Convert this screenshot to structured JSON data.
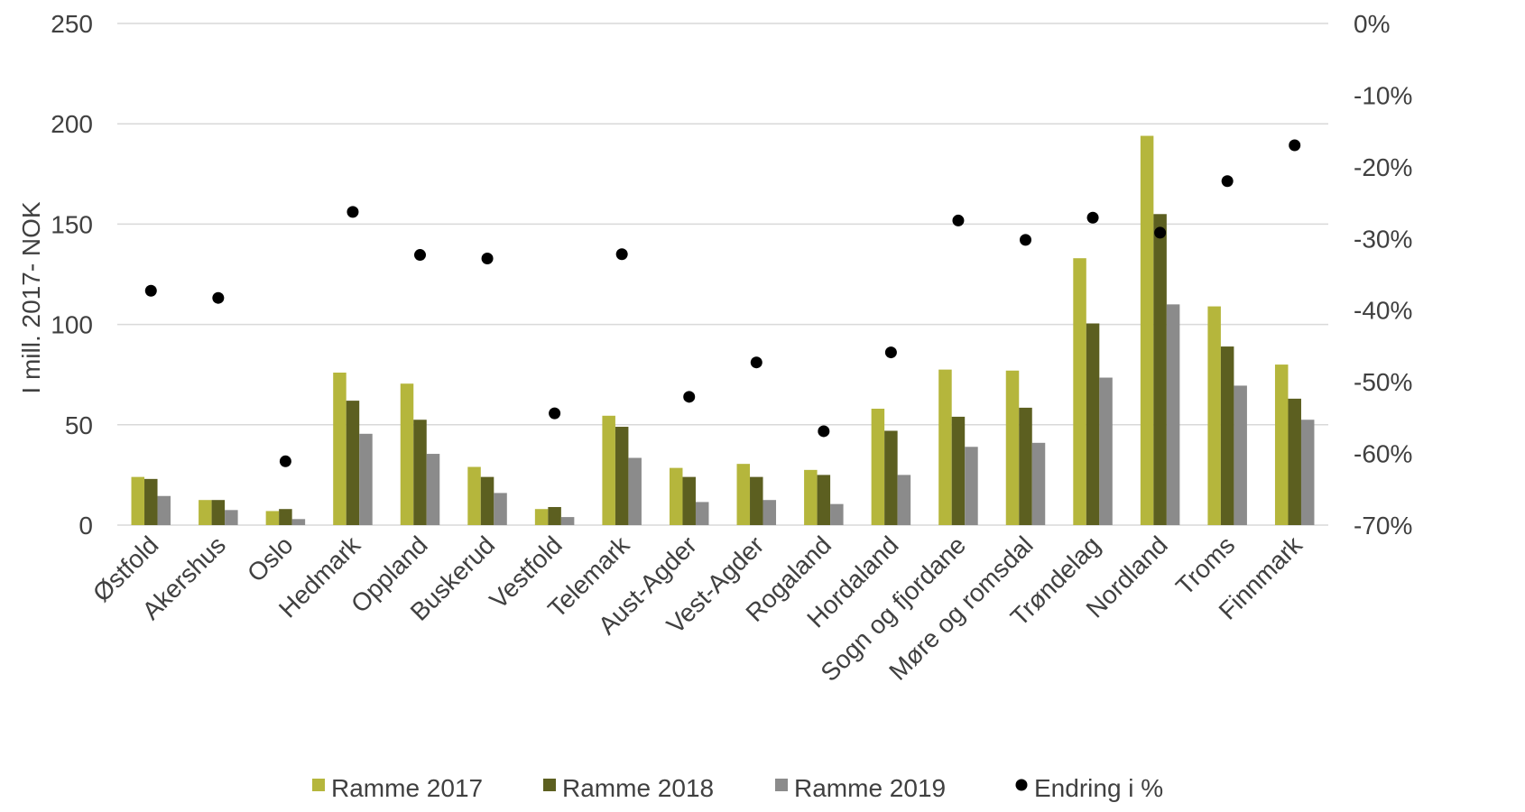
{
  "chart_data": {
    "type": "bar",
    "ylabel": "I mill. 2017- NOK",
    "ylim": [
      0,
      250
    ],
    "yticks": [
      0,
      50,
      100,
      150,
      200,
      250
    ],
    "y2lim": [
      -70,
      0
    ],
    "y2ticks": [
      "-70%",
      "-60%",
      "-50%",
      "-40%",
      "-30%",
      "-20%",
      "-10%",
      "0%"
    ],
    "y2tick_values": [
      -70,
      -60,
      -50,
      -40,
      -30,
      -20,
      -10,
      0
    ],
    "grid": true,
    "legend_position": "bottom",
    "categories": [
      "Østfold",
      "Akershus",
      "Oslo",
      "Hedmark",
      "Oppland",
      "Buskerud",
      "Vestfold",
      "Telemark",
      "Aust-Agder",
      "Vest-Agder",
      "Rogaland",
      "Hordaland",
      "Sogn og fjordane",
      "Møre og romsdal",
      "Trøndelag",
      "Nordland",
      "Troms",
      "Finnmark"
    ],
    "series": [
      {
        "name": "Ramme 2017",
        "type": "bar",
        "axis": "left",
        "color": "#b5b63c",
        "values": [
          24,
          12.5,
          7,
          76,
          70.5,
          29,
          8,
          54.5,
          28.5,
          30.5,
          27.5,
          58,
          77.5,
          77,
          133,
          194,
          109,
          80
        ]
      },
      {
        "name": "Ramme 2018",
        "type": "bar",
        "axis": "left",
        "color": "#5c5f20",
        "values": [
          23,
          12.5,
          8,
          62,
          52.5,
          24,
          9,
          49,
          24,
          24,
          25,
          47,
          54,
          58.5,
          100.5,
          155,
          89,
          63
        ]
      },
      {
        "name": "Ramme 2019",
        "type": "bar",
        "axis": "left",
        "color": "#8b8b8b",
        "values": [
          14.5,
          7.5,
          3,
          45.5,
          35.5,
          16,
          4,
          33.5,
          11.5,
          12.5,
          10.5,
          25,
          39,
          41,
          73.5,
          110,
          69.5,
          52.5
        ]
      },
      {
        "name": "Endring i %",
        "type": "scatter",
        "axis": "right",
        "color": "#000000",
        "values": [
          -37.3,
          -38.3,
          -61.1,
          -26.3,
          -32.3,
          -32.8,
          -54.4,
          -32.2,
          -52.1,
          -47.3,
          -56.9,
          -45.9,
          -27.5,
          -30.2,
          -27.1,
          -29.2,
          -22.0,
          -17.0
        ]
      }
    ]
  }
}
